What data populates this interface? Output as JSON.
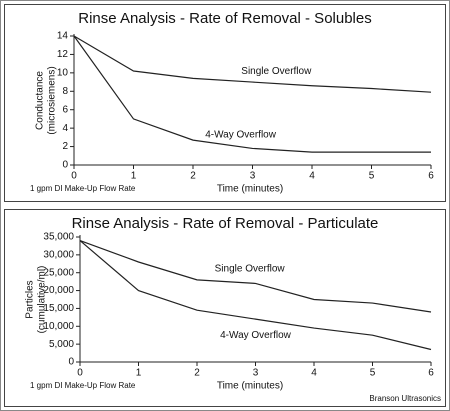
{
  "chart_data": [
    {
      "type": "line",
      "title": "Rinse Analysis - Rate of Removal - Solubles",
      "x": [
        0,
        1,
        2,
        3,
        4,
        5,
        6
      ],
      "series": [
        {
          "name": "Single Overflow",
          "color": "#222222",
          "values": [
            14,
            10.2,
            9.4,
            9.0,
            8.6,
            8.3,
            7.9
          ]
        },
        {
          "name": "4-Way Overflow",
          "color": "#222222",
          "values": [
            14,
            5.0,
            2.7,
            1.8,
            1.4,
            1.4,
            1.4
          ]
        }
      ],
      "xlim": [
        0,
        6
      ],
      "xticks": [
        0,
        1,
        2,
        3,
        4,
        5,
        6
      ],
      "ylim": [
        0,
        14
      ],
      "yticks": [
        0,
        2,
        4,
        6,
        8,
        10,
        12,
        14
      ],
      "xlabel": "Time (minutes)",
      "ylabel": [
        "Conductance",
        "(microsiemens)"
      ],
      "annotations": [
        "1 gpm DI Make-Up Flow Rate"
      ]
    },
    {
      "type": "line",
      "title": "Rinse Analysis - Rate of Removal - Particulate",
      "x": [
        0,
        1,
        2,
        3,
        4,
        5,
        6
      ],
      "series": [
        {
          "name": "Single Overflow",
          "color": "#222222",
          "values": [
            34000,
            28000,
            23000,
            22000,
            17500,
            16500,
            14000
          ]
        },
        {
          "name": "4-Way Overflow",
          "color": "#222222",
          "values": [
            34000,
            20000,
            14500,
            12000,
            9500,
            7500,
            3500
          ]
        }
      ],
      "xlim": [
        0,
        6
      ],
      "xticks": [
        0,
        1,
        2,
        3,
        4,
        5,
        6
      ],
      "ylim": [
        0,
        35000
      ],
      "yticks": [
        0,
        {
          "value": 5000,
          "label": "5,000"
        },
        {
          "value": 10000,
          "label": "10,000"
        },
        {
          "value": 15000,
          "label": "15,000"
        },
        {
          "value": 20000,
          "label": "20,000"
        },
        {
          "value": 25000,
          "label": "25,000"
        },
        {
          "value": 30000,
          "label": "30,000"
        },
        {
          "value": 35000,
          "label": "35,000"
        }
      ],
      "xlabel": "Time (minutes)",
      "ylabel": [
        "Particles",
        "(cumulative/ml)"
      ],
      "annotations": [
        "1 gpm DI Make-Up Flow Rate",
        "Branson Ultrasonics"
      ]
    }
  ]
}
